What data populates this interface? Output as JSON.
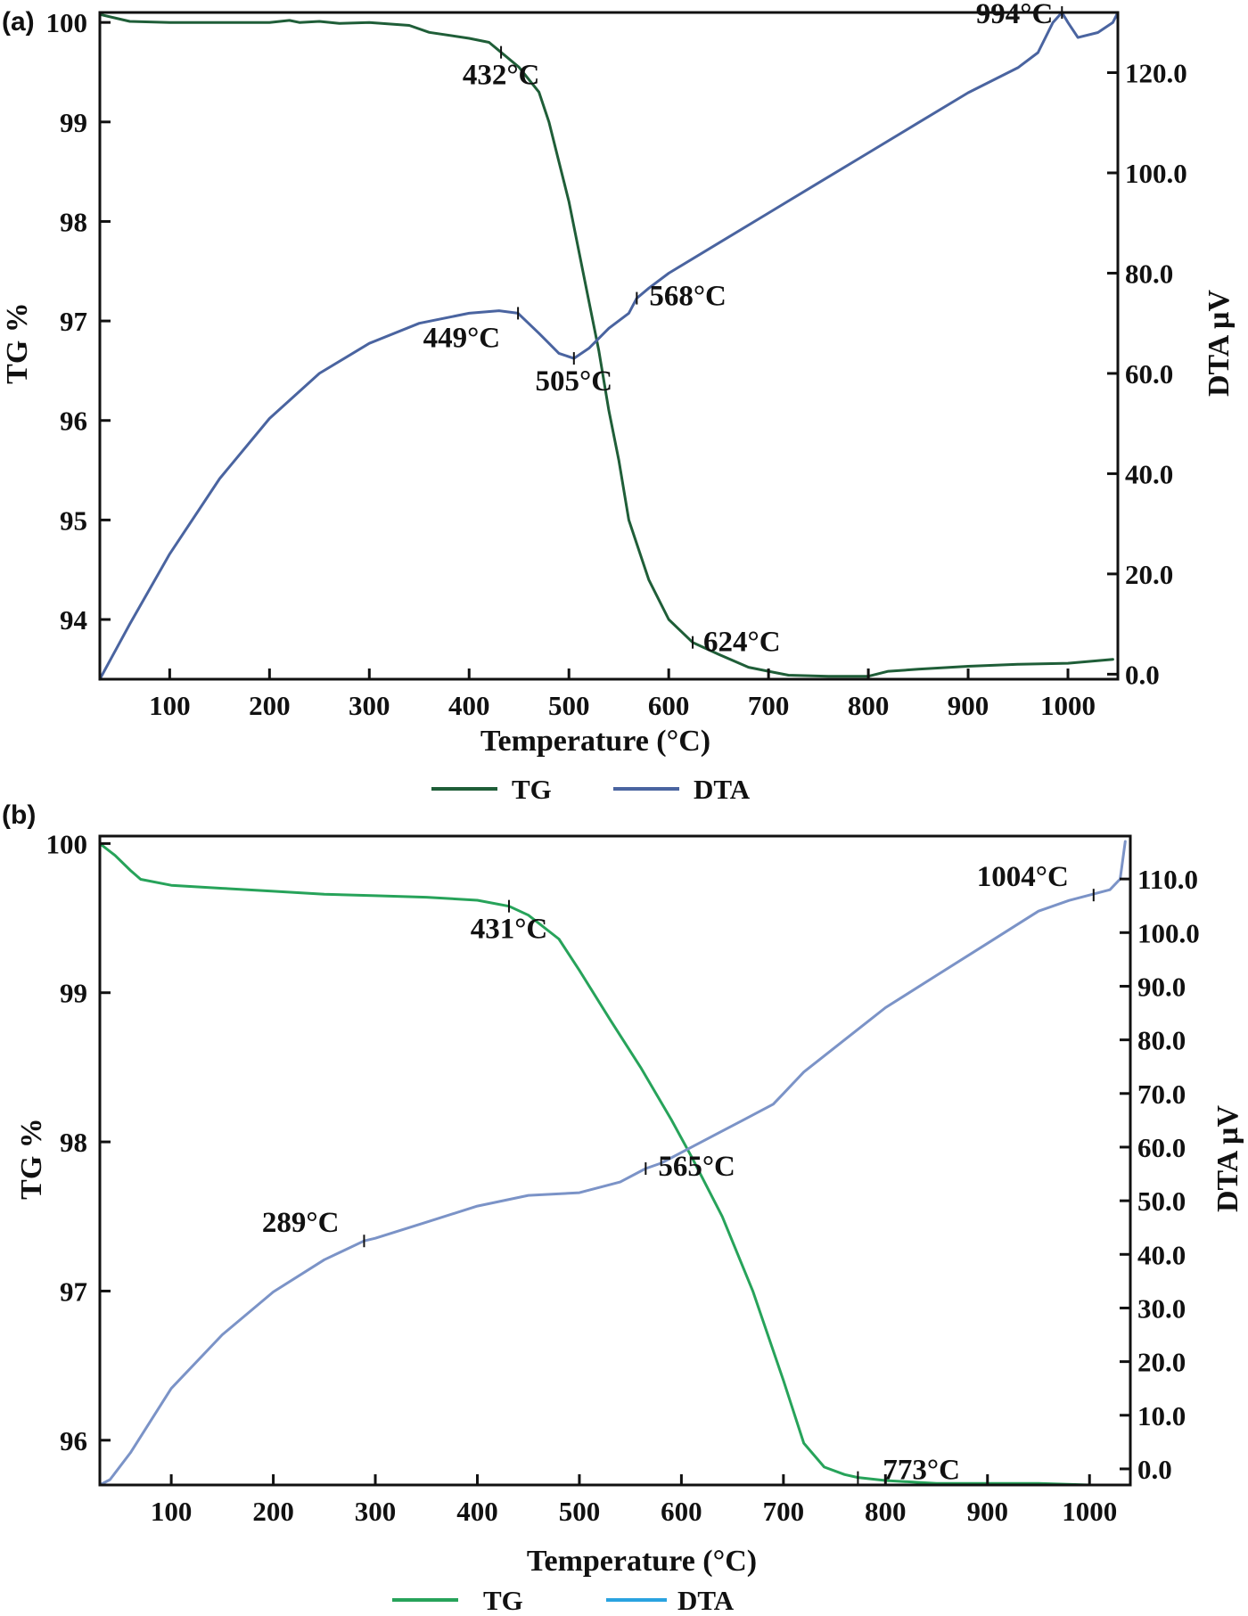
{
  "chart_data": [
    {
      "panel": "(a)",
      "type": "line",
      "xlabel": "Temperature (°C)",
      "ylabel": "TG %",
      "y2label": "DTA µV",
      "xlim": [
        30,
        1050
      ],
      "ylim": [
        93.4,
        100.1
      ],
      "y2lim": [
        -1.0,
        132.0
      ],
      "xticks": [
        100,
        200,
        300,
        400,
        500,
        600,
        700,
        800,
        900,
        1000
      ],
      "yticks": [
        94,
        95,
        96,
        97,
        98,
        99,
        100
      ],
      "y2ticks": [
        0.0,
        20.0,
        40.0,
        60.0,
        80.0,
        100.0,
        120.0
      ],
      "y2tick_labels": [
        "0.0",
        "20.0",
        "40.0",
        "60.0",
        "80.0",
        "100.0",
        "120.0"
      ],
      "colors": {
        "TG": "#1f5e38",
        "DTA": "#4a64a0"
      },
      "legend": {
        "position": "bottom-center",
        "entries": [
          "TG",
          "DTA"
        ]
      },
      "series": [
        {
          "name": "TG",
          "axis": "left",
          "x": [
            30,
            60,
            100,
            150,
            200,
            220,
            230,
            250,
            270,
            300,
            340,
            360,
            400,
            420,
            432,
            450,
            470,
            480,
            490,
            500,
            510,
            520,
            530,
            540,
            550,
            560,
            580,
            600,
            624,
            650,
            680,
            700,
            720,
            760,
            800,
            820,
            850,
            900,
            950,
            1000,
            1045
          ],
          "y": [
            100.08,
            100.01,
            100.0,
            100.0,
            100.0,
            100.02,
            100.0,
            100.01,
            99.99,
            100.0,
            99.97,
            99.9,
            99.84,
            99.8,
            99.7,
            99.55,
            99.3,
            99.0,
            98.6,
            98.2,
            97.7,
            97.2,
            96.7,
            96.1,
            95.6,
            95.0,
            94.4,
            94.0,
            93.77,
            93.65,
            93.52,
            93.48,
            93.44,
            93.43,
            93.43,
            93.48,
            93.5,
            93.53,
            93.55,
            93.56,
            93.6
          ]
        },
        {
          "name": "DTA",
          "axis": "right",
          "x": [
            30,
            60,
            100,
            150,
            200,
            250,
            300,
            350,
            400,
            430,
            449,
            470,
            490,
            505,
            520,
            540,
            560,
            568,
            580,
            600,
            650,
            700,
            750,
            800,
            850,
            900,
            950,
            970,
            985,
            994,
            1000,
            1010,
            1030,
            1045,
            1050
          ],
          "y": [
            -1.0,
            10.0,
            24.0,
            39.0,
            51.0,
            60.0,
            66.0,
            70.0,
            72.0,
            72.5,
            72.0,
            68.0,
            64.0,
            63.0,
            65.0,
            69.0,
            72.0,
            75.0,
            77.0,
            80.0,
            86.0,
            92.0,
            98.0,
            104.0,
            110.0,
            116.0,
            121.0,
            124.0,
            130.0,
            134.0,
            130.0,
            127.0,
            128.0,
            130.0,
            138.0
          ]
        }
      ],
      "annotations": [
        {
          "text": "432°C",
          "x": 432,
          "y": 99.7,
          "axis": "left",
          "anchor": "below"
        },
        {
          "text": "449°C",
          "x": 449,
          "y": 72.0,
          "axis": "right",
          "anchor": "below-left"
        },
        {
          "text": "505°C",
          "x": 505,
          "y": 63.0,
          "axis": "right",
          "anchor": "below"
        },
        {
          "text": "568°C",
          "x": 568,
          "y": 75.0,
          "axis": "right",
          "anchor": "below-right"
        },
        {
          "text": "624°C",
          "x": 624,
          "y": 93.77,
          "axis": "left",
          "anchor": "right"
        },
        {
          "text": "994°C",
          "x": 994,
          "y": 134.0,
          "axis": "right",
          "anchor": "left"
        }
      ]
    },
    {
      "panel": "(b)",
      "type": "line",
      "xlabel": "Temperature (°C)",
      "ylabel": "TG %",
      "y2label": "DTA µV",
      "xlim": [
        30,
        1040
      ],
      "ylim": [
        95.7,
        100.05
      ],
      "y2lim": [
        -3.0,
        118.0
      ],
      "xticks": [
        100,
        200,
        300,
        400,
        500,
        600,
        700,
        800,
        900,
        1000
      ],
      "yticks": [
        96,
        97,
        98,
        99,
        100
      ],
      "y2ticks": [
        0.0,
        10.0,
        20.0,
        30.0,
        40.0,
        50.0,
        60.0,
        70.0,
        80.0,
        90.0,
        100.0,
        110.0
      ],
      "y2tick_labels": [
        "0.0",
        "10.0",
        "20.0",
        "30.0",
        "40.0",
        "50.0",
        "60.0",
        "70.0",
        "80.0",
        "90.0",
        "100.0",
        "110.0"
      ],
      "colors": {
        "TG": "#27a35a",
        "DTA": "#7b93c7",
        "DTA_legend": "#2aa3e0"
      },
      "legend": {
        "position": "bottom-center",
        "entries": [
          "TG",
          "DTA"
        ]
      },
      "series": [
        {
          "name": "TG",
          "axis": "left",
          "x": [
            30,
            45,
            60,
            70,
            100,
            150,
            200,
            250,
            300,
            350,
            400,
            431,
            450,
            480,
            500,
            530,
            560,
            590,
            610,
            640,
            670,
            700,
            720,
            740,
            760,
            773,
            800,
            850,
            900,
            950,
            1000,
            1040
          ],
          "y": [
            100.0,
            99.92,
            99.82,
            99.76,
            99.72,
            99.7,
            99.68,
            99.66,
            99.65,
            99.64,
            99.62,
            99.58,
            99.52,
            99.36,
            99.15,
            98.82,
            98.5,
            98.15,
            97.9,
            97.5,
            97.0,
            96.4,
            95.98,
            95.82,
            95.77,
            95.75,
            95.73,
            95.71,
            95.71,
            95.71,
            95.7,
            95.7
          ]
        },
        {
          "name": "DTA",
          "axis": "right",
          "x": [
            30,
            40,
            60,
            80,
            100,
            150,
            200,
            250,
            289,
            300,
            350,
            400,
            450,
            500,
            540,
            565,
            580,
            620,
            660,
            690,
            700,
            720,
            760,
            800,
            850,
            900,
            950,
            980,
            1000,
            1020,
            1030,
            1035
          ],
          "y": [
            -3.0,
            -2.0,
            3.0,
            9.0,
            15.0,
            25.0,
            33.0,
            39.0,
            42.5,
            43.0,
            46.0,
            49.0,
            51.0,
            51.5,
            53.5,
            56.0,
            57.0,
            61.0,
            65.0,
            68.0,
            70.0,
            74.0,
            80.0,
            86.0,
            92.0,
            98.0,
            104.0,
            106.0,
            107.0,
            108.0,
            110.0,
            117.0
          ]
        }
      ],
      "annotations": [
        {
          "text": "289°C",
          "x": 289,
          "y": 42.5,
          "axis": "right",
          "anchor": "above-left"
        },
        {
          "text": "431°C",
          "x": 431,
          "y": 99.58,
          "axis": "left",
          "anchor": "below"
        },
        {
          "text": "565°C",
          "x": 565,
          "y": 56.0,
          "axis": "right",
          "anchor": "below-right"
        },
        {
          "text": "773°C",
          "x": 773,
          "y": 95.75,
          "axis": "left",
          "anchor": "above-right"
        },
        {
          "text": "1004°C",
          "x": 1004,
          "y": 107.0,
          "axis": "right",
          "anchor": "above-left"
        }
      ]
    }
  ]
}
